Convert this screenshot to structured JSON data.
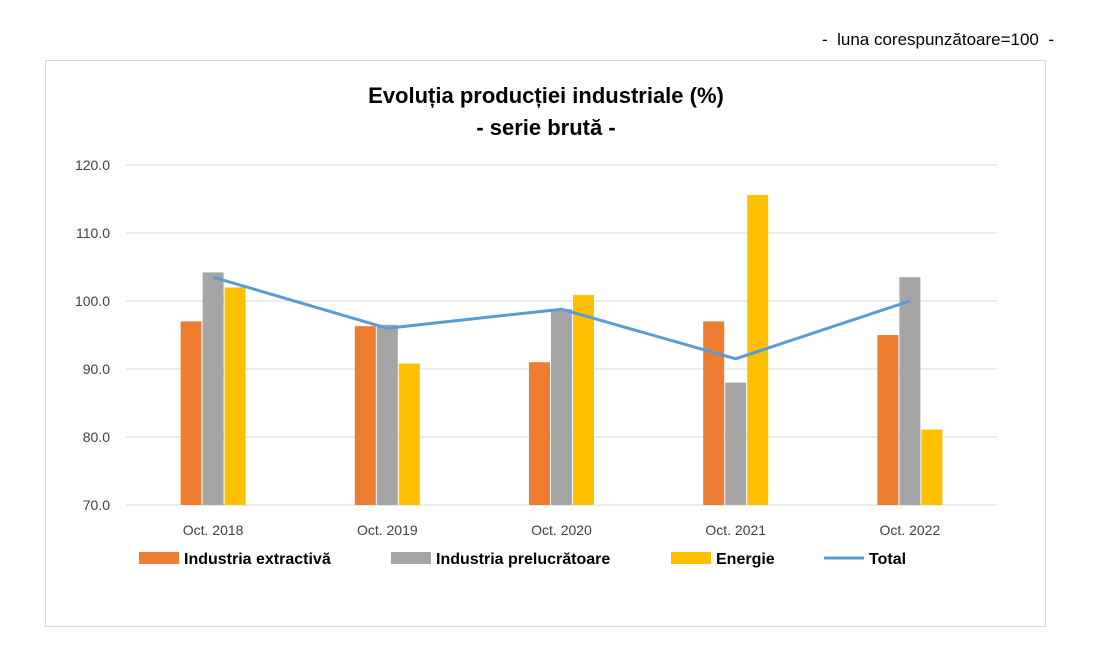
{
  "note": "-  luna corespunzătoare=100  -",
  "chart_data": {
    "type": "bar",
    "title": "Evoluția producției industriale (%)",
    "subtitle": "- serie brută -",
    "categories": [
      "Oct. 2018",
      "Oct. 2019",
      "Oct. 2020",
      "Oct. 2021",
      "Oct. 2022"
    ],
    "series": [
      {
        "name": "Industria extractivă",
        "kind": "bar",
        "color": "#ED7D31",
        "values": [
          97.0,
          96.3,
          91.0,
          97.0,
          95.0
        ]
      },
      {
        "name": "Industria prelucrătoare",
        "kind": "bar",
        "color": "#A5A5A5",
        "values": [
          104.2,
          96.5,
          98.8,
          88.0,
          103.5
        ]
      },
      {
        "name": "Energie",
        "kind": "bar",
        "color": "#FFC000",
        "values": [
          102.0,
          90.8,
          100.9,
          115.6,
          81.1
        ]
      },
      {
        "name": "Total",
        "kind": "line",
        "color": "#5B9BD5",
        "values": [
          103.5,
          96.0,
          98.8,
          91.5,
          100.0
        ]
      }
    ],
    "ylim": [
      70,
      120
    ],
    "yticks": [
      "70.0",
      "80.0",
      "90.0",
      "100.0",
      "110.0",
      "120.0"
    ],
    "grid": true,
    "legend": "bottom",
    "xlabel": "",
    "ylabel": ""
  }
}
